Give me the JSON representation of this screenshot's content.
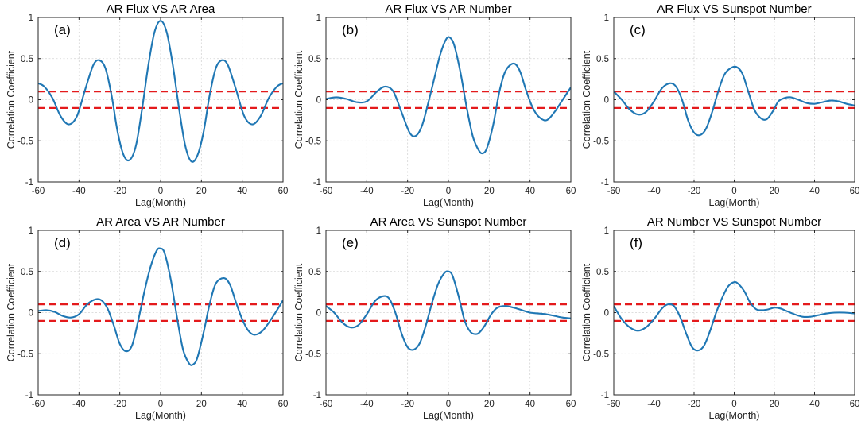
{
  "colors": {
    "series": "#1f77b4",
    "threshold": "#e41a1c"
  },
  "chart_data": [
    {
      "type": "line",
      "panel": "(a)",
      "title": "AR Flux VS AR Area",
      "xlabel": "Lag(Month)",
      "ylabel": "Correlation Coefficient",
      "xlim": [
        -60,
        60
      ],
      "ylim": [
        -1,
        1
      ],
      "xticks": [
        -60,
        -40,
        -20,
        0,
        20,
        40,
        60
      ],
      "yticks": [
        -1,
        -0.5,
        0,
        0.5,
        1
      ],
      "xtick_labels": [
        "-60",
        "-40",
        "-20",
        "0",
        "20",
        "40",
        "60"
      ],
      "ytick_labels": [
        "-1",
        "-0.5",
        "0",
        "0.5",
        "1"
      ],
      "thresholds": [
        0.1,
        -0.1
      ],
      "grid": true,
      "series": [
        {
          "name": "correlation",
          "x": [
            -60,
            -57,
            -53,
            -49,
            -45,
            -41,
            -37,
            -33,
            -30,
            -27,
            -24,
            -21,
            -18,
            -15,
            -12,
            -9,
            -6,
            -3,
            0,
            3,
            6,
            9,
            12,
            15,
            18,
            21,
            24,
            27,
            30,
            33,
            37,
            41,
            45,
            49,
            53,
            57,
            60
          ],
          "y": [
            0.2,
            0.16,
            0.02,
            -0.2,
            -0.3,
            -0.2,
            0.12,
            0.42,
            0.48,
            0.38,
            0.05,
            -0.4,
            -0.68,
            -0.73,
            -0.55,
            -0.1,
            0.42,
            0.82,
            0.96,
            0.82,
            0.42,
            -0.1,
            -0.55,
            -0.75,
            -0.68,
            -0.4,
            0.05,
            0.38,
            0.48,
            0.42,
            0.12,
            -0.2,
            -0.3,
            -0.2,
            0.02,
            0.16,
            0.2
          ]
        }
      ]
    },
    {
      "type": "line",
      "panel": "(b)",
      "title": "AR Flux VS AR Number",
      "xlabel": "Lag(Month)",
      "ylabel": "Correlation Coefficient",
      "xlim": [
        -60,
        60
      ],
      "ylim": [
        -1,
        1
      ],
      "xticks": [
        -60,
        -40,
        -20,
        0,
        20,
        40,
        60
      ],
      "yticks": [
        -1,
        -0.5,
        0,
        0.5,
        1
      ],
      "xtick_labels": [
        "-60",
        "-40",
        "-20",
        "0",
        "20",
        "40",
        "60"
      ],
      "ytick_labels": [
        "-1",
        "-0.5",
        "0",
        "0.5",
        "1"
      ],
      "thresholds": [
        0.1,
        -0.1
      ],
      "grid": true,
      "series": [
        {
          "name": "correlation",
          "x": [
            -60,
            -55,
            -50,
            -45,
            -40,
            -35,
            -31,
            -27,
            -23,
            -19,
            -16,
            -13,
            -10,
            -7,
            -4,
            -1,
            1,
            3,
            6,
            9,
            12,
            15,
            17,
            19,
            22,
            25,
            28,
            32,
            35,
            38,
            41,
            44,
            48,
            52,
            56,
            60
          ],
          "y": [
            0.01,
            0.03,
            0.01,
            -0.03,
            -0.02,
            0.1,
            0.16,
            0.1,
            -0.15,
            -0.4,
            -0.44,
            -0.32,
            -0.05,
            0.25,
            0.55,
            0.74,
            0.75,
            0.65,
            0.32,
            -0.1,
            -0.45,
            -0.62,
            -0.65,
            -0.58,
            -0.3,
            0.1,
            0.35,
            0.44,
            0.35,
            0.12,
            -0.08,
            -0.2,
            -0.25,
            -0.15,
            0.0,
            0.15
          ]
        }
      ]
    },
    {
      "type": "line",
      "panel": "(c)",
      "title": "AR Flux VS Sunspot Number",
      "xlabel": "Lag(Month)",
      "ylabel": "Correlation Coefficient",
      "xlim": [
        -60,
        60
      ],
      "ylim": [
        -1,
        1
      ],
      "xticks": [
        -60,
        -40,
        -20,
        0,
        20,
        40,
        60
      ],
      "yticks": [
        -1,
        -0.5,
        0,
        0.5,
        1
      ],
      "xtick_labels": [
        "-60",
        "-40",
        "-20",
        "0",
        "20",
        "40",
        "60"
      ],
      "ytick_labels": [
        "-1",
        "-0.5",
        "0",
        "0.5",
        "1"
      ],
      "thresholds": [
        0.1,
        -0.1
      ],
      "grid": true,
      "series": [
        {
          "name": "correlation",
          "x": [
            -60,
            -56,
            -52,
            -48,
            -44,
            -40,
            -36,
            -32,
            -29,
            -26,
            -23,
            -20,
            -17,
            -14,
            -11,
            -8,
            -5,
            -2,
            1,
            4,
            7,
            10,
            13,
            16,
            19,
            22,
            25,
            28,
            32,
            36,
            40,
            44,
            48,
            52,
            56,
            60
          ],
          "y": [
            0.1,
            0.0,
            -0.12,
            -0.18,
            -0.15,
            -0.02,
            0.14,
            0.2,
            0.16,
            0.0,
            -0.25,
            -0.4,
            -0.43,
            -0.35,
            -0.15,
            0.1,
            0.3,
            0.38,
            0.4,
            0.32,
            0.1,
            -0.12,
            -0.22,
            -0.24,
            -0.15,
            -0.02,
            0.02,
            0.03,
            0.0,
            -0.04,
            -0.05,
            -0.03,
            -0.01,
            -0.02,
            -0.05,
            -0.07
          ]
        }
      ]
    },
    {
      "type": "line",
      "panel": "(d)",
      "title": "AR Area VS AR Number",
      "xlabel": "Lag(Month)",
      "ylabel": "Correlation Coefficient",
      "xlim": [
        -60,
        60
      ],
      "ylim": [
        -1,
        1
      ],
      "xticks": [
        -60,
        -40,
        -20,
        0,
        20,
        40,
        60
      ],
      "yticks": [
        -1,
        -0.5,
        0,
        0.5,
        1
      ],
      "xtick_labels": [
        "-60",
        "-40",
        "-20",
        "0",
        "20",
        "40",
        "60"
      ],
      "ytick_labels": [
        "-1",
        "-0.5",
        "0",
        "0.5",
        "1"
      ],
      "thresholds": [
        0.1,
        -0.1
      ],
      "grid": true,
      "series": [
        {
          "name": "correlation",
          "x": [
            -60,
            -56,
            -52,
            -48,
            -44,
            -40,
            -36,
            -32,
            -29,
            -26,
            -23,
            -20,
            -17,
            -14,
            -11,
            -8,
            -5,
            -2,
            0,
            2,
            5,
            8,
            11,
            14,
            16,
            18,
            21,
            24,
            27,
            31,
            34,
            37,
            40,
            43,
            46,
            50,
            55,
            60
          ],
          "y": [
            0.02,
            0.03,
            0.01,
            -0.04,
            -0.06,
            -0.02,
            0.1,
            0.16,
            0.15,
            0.05,
            -0.15,
            -0.38,
            -0.47,
            -0.4,
            -0.1,
            0.25,
            0.55,
            0.75,
            0.78,
            0.72,
            0.4,
            -0.05,
            -0.45,
            -0.62,
            -0.63,
            -0.55,
            -0.25,
            0.1,
            0.35,
            0.42,
            0.34,
            0.12,
            -0.08,
            -0.22,
            -0.27,
            -0.22,
            -0.05,
            0.15
          ]
        }
      ]
    },
    {
      "type": "line",
      "panel": "(e)",
      "title": "AR Area VS Sunspot Number",
      "xlabel": "Lag(Month)",
      "ylabel": "Correlation Coefficient",
      "xlim": [
        -60,
        60
      ],
      "ylim": [
        -1,
        1
      ],
      "xticks": [
        -60,
        -40,
        -20,
        0,
        20,
        40,
        60
      ],
      "yticks": [
        -1,
        -0.5,
        0,
        0.5,
        1
      ],
      "xtick_labels": [
        "-60",
        "-40",
        "-20",
        "0",
        "20",
        "40",
        "60"
      ],
      "ytick_labels": [
        "-1",
        "-0.5",
        "0",
        "0.5",
        "1"
      ],
      "thresholds": [
        0.1,
        -0.1
      ],
      "grid": true,
      "series": [
        {
          "name": "correlation",
          "x": [
            -60,
            -56,
            -52,
            -48,
            -44,
            -40,
            -36,
            -32,
            -29,
            -26,
            -23,
            -20,
            -17,
            -14,
            -11,
            -8,
            -5,
            -2,
            0,
            2,
            5,
            8,
            11,
            14,
            16,
            18,
            21,
            24,
            28,
            32,
            36,
            40,
            44,
            48,
            52,
            56,
            60
          ],
          "y": [
            0.08,
            0.0,
            -0.12,
            -0.18,
            -0.15,
            -0.02,
            0.14,
            0.2,
            0.17,
            0.0,
            -0.25,
            -0.42,
            -0.45,
            -0.37,
            -0.15,
            0.12,
            0.35,
            0.48,
            0.5,
            0.45,
            0.2,
            -0.1,
            -0.24,
            -0.26,
            -0.22,
            -0.15,
            -0.02,
            0.06,
            0.08,
            0.06,
            0.03,
            0.0,
            -0.01,
            -0.02,
            -0.04,
            -0.06,
            -0.07
          ]
        }
      ]
    },
    {
      "type": "line",
      "panel": "(f)",
      "title": "AR Number VS Sunspot Number",
      "xlabel": "Lag(Month)",
      "ylabel": "Correlation Coefficient",
      "xlim": [
        -60,
        60
      ],
      "ylim": [
        -1,
        1
      ],
      "xticks": [
        -60,
        -40,
        -20,
        0,
        20,
        40,
        60
      ],
      "yticks": [
        -1,
        -0.5,
        0,
        0.5,
        1
      ],
      "xtick_labels": [
        "-60",
        "-40",
        "-20",
        "0",
        "20",
        "40",
        "60"
      ],
      "ytick_labels": [
        "-1",
        "-0.5",
        "0",
        "0.5",
        "1"
      ],
      "thresholds": [
        0.1,
        -0.1
      ],
      "grid": true,
      "series": [
        {
          "name": "correlation",
          "x": [
            -60,
            -56,
            -52,
            -48,
            -44,
            -40,
            -36,
            -33,
            -30,
            -27,
            -24,
            -21,
            -18,
            -15,
            -12,
            -9,
            -6,
            -3,
            0,
            2,
            5,
            8,
            11,
            14,
            17,
            20,
            23,
            26,
            30,
            34,
            38,
            42,
            46,
            50,
            55,
            60
          ],
          "y": [
            0.08,
            -0.08,
            -0.18,
            -0.22,
            -0.18,
            -0.08,
            0.05,
            0.1,
            0.08,
            -0.05,
            -0.25,
            -0.42,
            -0.46,
            -0.4,
            -0.22,
            0.0,
            0.18,
            0.32,
            0.37,
            0.35,
            0.26,
            0.12,
            0.04,
            0.03,
            0.04,
            0.06,
            0.05,
            0.02,
            -0.02,
            -0.05,
            -0.05,
            -0.03,
            -0.01,
            0.0,
            0.0,
            -0.01
          ]
        }
      ]
    }
  ]
}
